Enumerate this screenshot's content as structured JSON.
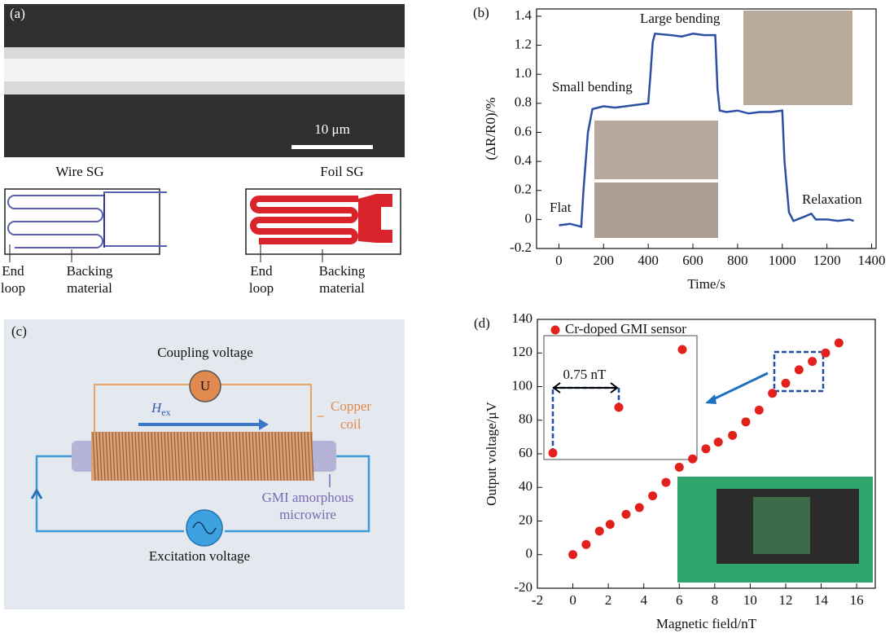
{
  "panel_a": {
    "label": "(a)",
    "scale_bar": "10 μm",
    "wire": {
      "title": "Wire SG",
      "end_loop": [
        "End",
        "loop"
      ],
      "backing": [
        "Backing",
        "material"
      ]
    },
    "foil": {
      "title": "Foil SG",
      "end_loop": [
        "End",
        "loop"
      ],
      "backing": [
        "Backing",
        "material"
      ]
    }
  },
  "panel_c": {
    "label": "(c)",
    "coupling": "Coupling voltage",
    "source": "U",
    "field": "H",
    "field_sub": "ex",
    "coil": [
      "Copper",
      "coil"
    ],
    "wire": [
      "GMI amorphous",
      "microwire"
    ],
    "excitation": "Excitation voltage"
  },
  "chart_data": [
    {
      "type": "line",
      "label": "(b)",
      "xlabel": "Time/s",
      "ylabel": "(ΔR/R0)/%",
      "annotations": [
        "Flat",
        "Small bending",
        "Large bending",
        "Relaxation"
      ],
      "x": [
        0,
        50,
        100,
        110,
        130,
        150,
        200,
        250,
        300,
        350,
        400,
        410,
        420,
        430,
        500,
        550,
        600,
        650,
        700,
        710,
        720,
        750,
        800,
        850,
        900,
        950,
        1000,
        1010,
        1030,
        1050,
        1100,
        1130,
        1150,
        1200,
        1250,
        1300,
        1320
      ],
      "series": [
        {
          "name": "ΔR/R0",
          "color": "#2c4fa3",
          "values": [
            -0.04,
            -0.03,
            -0.05,
            0.2,
            0.6,
            0.76,
            0.78,
            0.77,
            0.78,
            0.79,
            0.8,
            1.0,
            1.22,
            1.28,
            1.27,
            1.26,
            1.28,
            1.27,
            1.27,
            0.9,
            0.75,
            0.74,
            0.75,
            0.73,
            0.74,
            0.74,
            0.75,
            0.4,
            0.05,
            -0.01,
            0.02,
            0.04,
            0.0,
            0.0,
            -0.01,
            0.0,
            -0.01
          ]
        }
      ],
      "xlim": [
        -100,
        1420
      ],
      "ylim": [
        -0.2,
        1.45
      ],
      "xticks": [
        0,
        200,
        400,
        600,
        800,
        1000,
        1200,
        1400
      ],
      "yticks": [
        -0.2,
        0,
        0.2,
        0.4,
        0.6,
        0.8,
        {
          "value": 1,
          "label": "1.0"
        },
        1.2,
        1.4
      ]
    },
    {
      "type": "scatter",
      "label": "(d)",
      "xlabel": "Magnetic field/nT",
      "ylabel": "Output voltage/μV",
      "inset_label": "0.75 nT",
      "x": [
        0,
        0.75,
        1.5,
        2.1,
        3,
        3.75,
        4.5,
        5.25,
        6,
        6.75,
        7.5,
        8.2,
        9,
        9.75,
        10.5,
        11.25,
        12,
        12.75,
        13.5,
        14.25,
        15
      ],
      "series": [
        {
          "name": "Cr-doped GMI sensor",
          "color": "#e3211c",
          "values": [
            0,
            6,
            14,
            18,
            24,
            28,
            35,
            43,
            52,
            57,
            63,
            67,
            71,
            79,
            86,
            96,
            102,
            110,
            115,
            120,
            126
          ]
        }
      ],
      "xlim": [
        -2,
        17.05
      ],
      "ylim": [
        -20,
        140
      ],
      "xticks": [
        -2,
        0,
        2,
        4,
        6,
        8,
        10,
        12,
        14,
        16
      ],
      "yticks": [
        -20,
        0,
        20,
        40,
        60,
        80,
        100,
        120,
        140
      ]
    }
  ]
}
